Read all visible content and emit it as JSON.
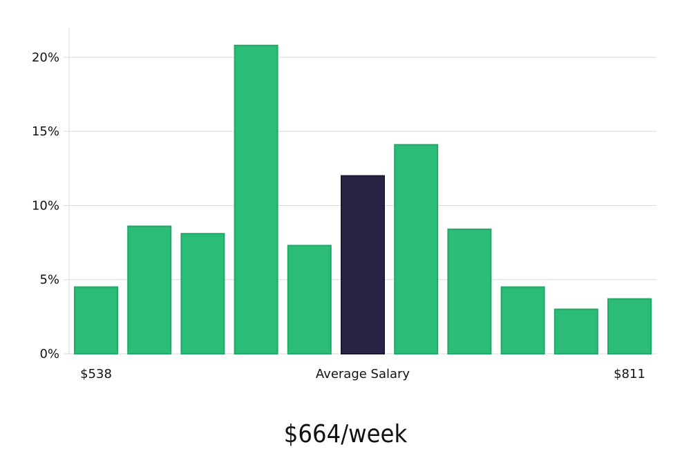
{
  "chart_data": {
    "type": "bar",
    "values": [
      4.5,
      8.6,
      8.1,
      20.8,
      7.3,
      12.0,
      14.1,
      8.4,
      4.5,
      3.0,
      3.7
    ],
    "highlight_index": 5,
    "ylim": [
      0,
      22
    ],
    "yticks": [
      0,
      5,
      10,
      15,
      20
    ],
    "ytick_labels": [
      "0%",
      "5%",
      "10%",
      "15%",
      "20%"
    ],
    "x_start_label": "$538",
    "xlabel": "Average Salary",
    "x_end_label": "$811",
    "grid": true,
    "colors": {
      "bar": "#2bbd77",
      "bar_border": "#22a866",
      "highlight": "#282445",
      "grid": "#d9d9d9"
    }
  },
  "footer": {
    "value": "$664/week"
  }
}
